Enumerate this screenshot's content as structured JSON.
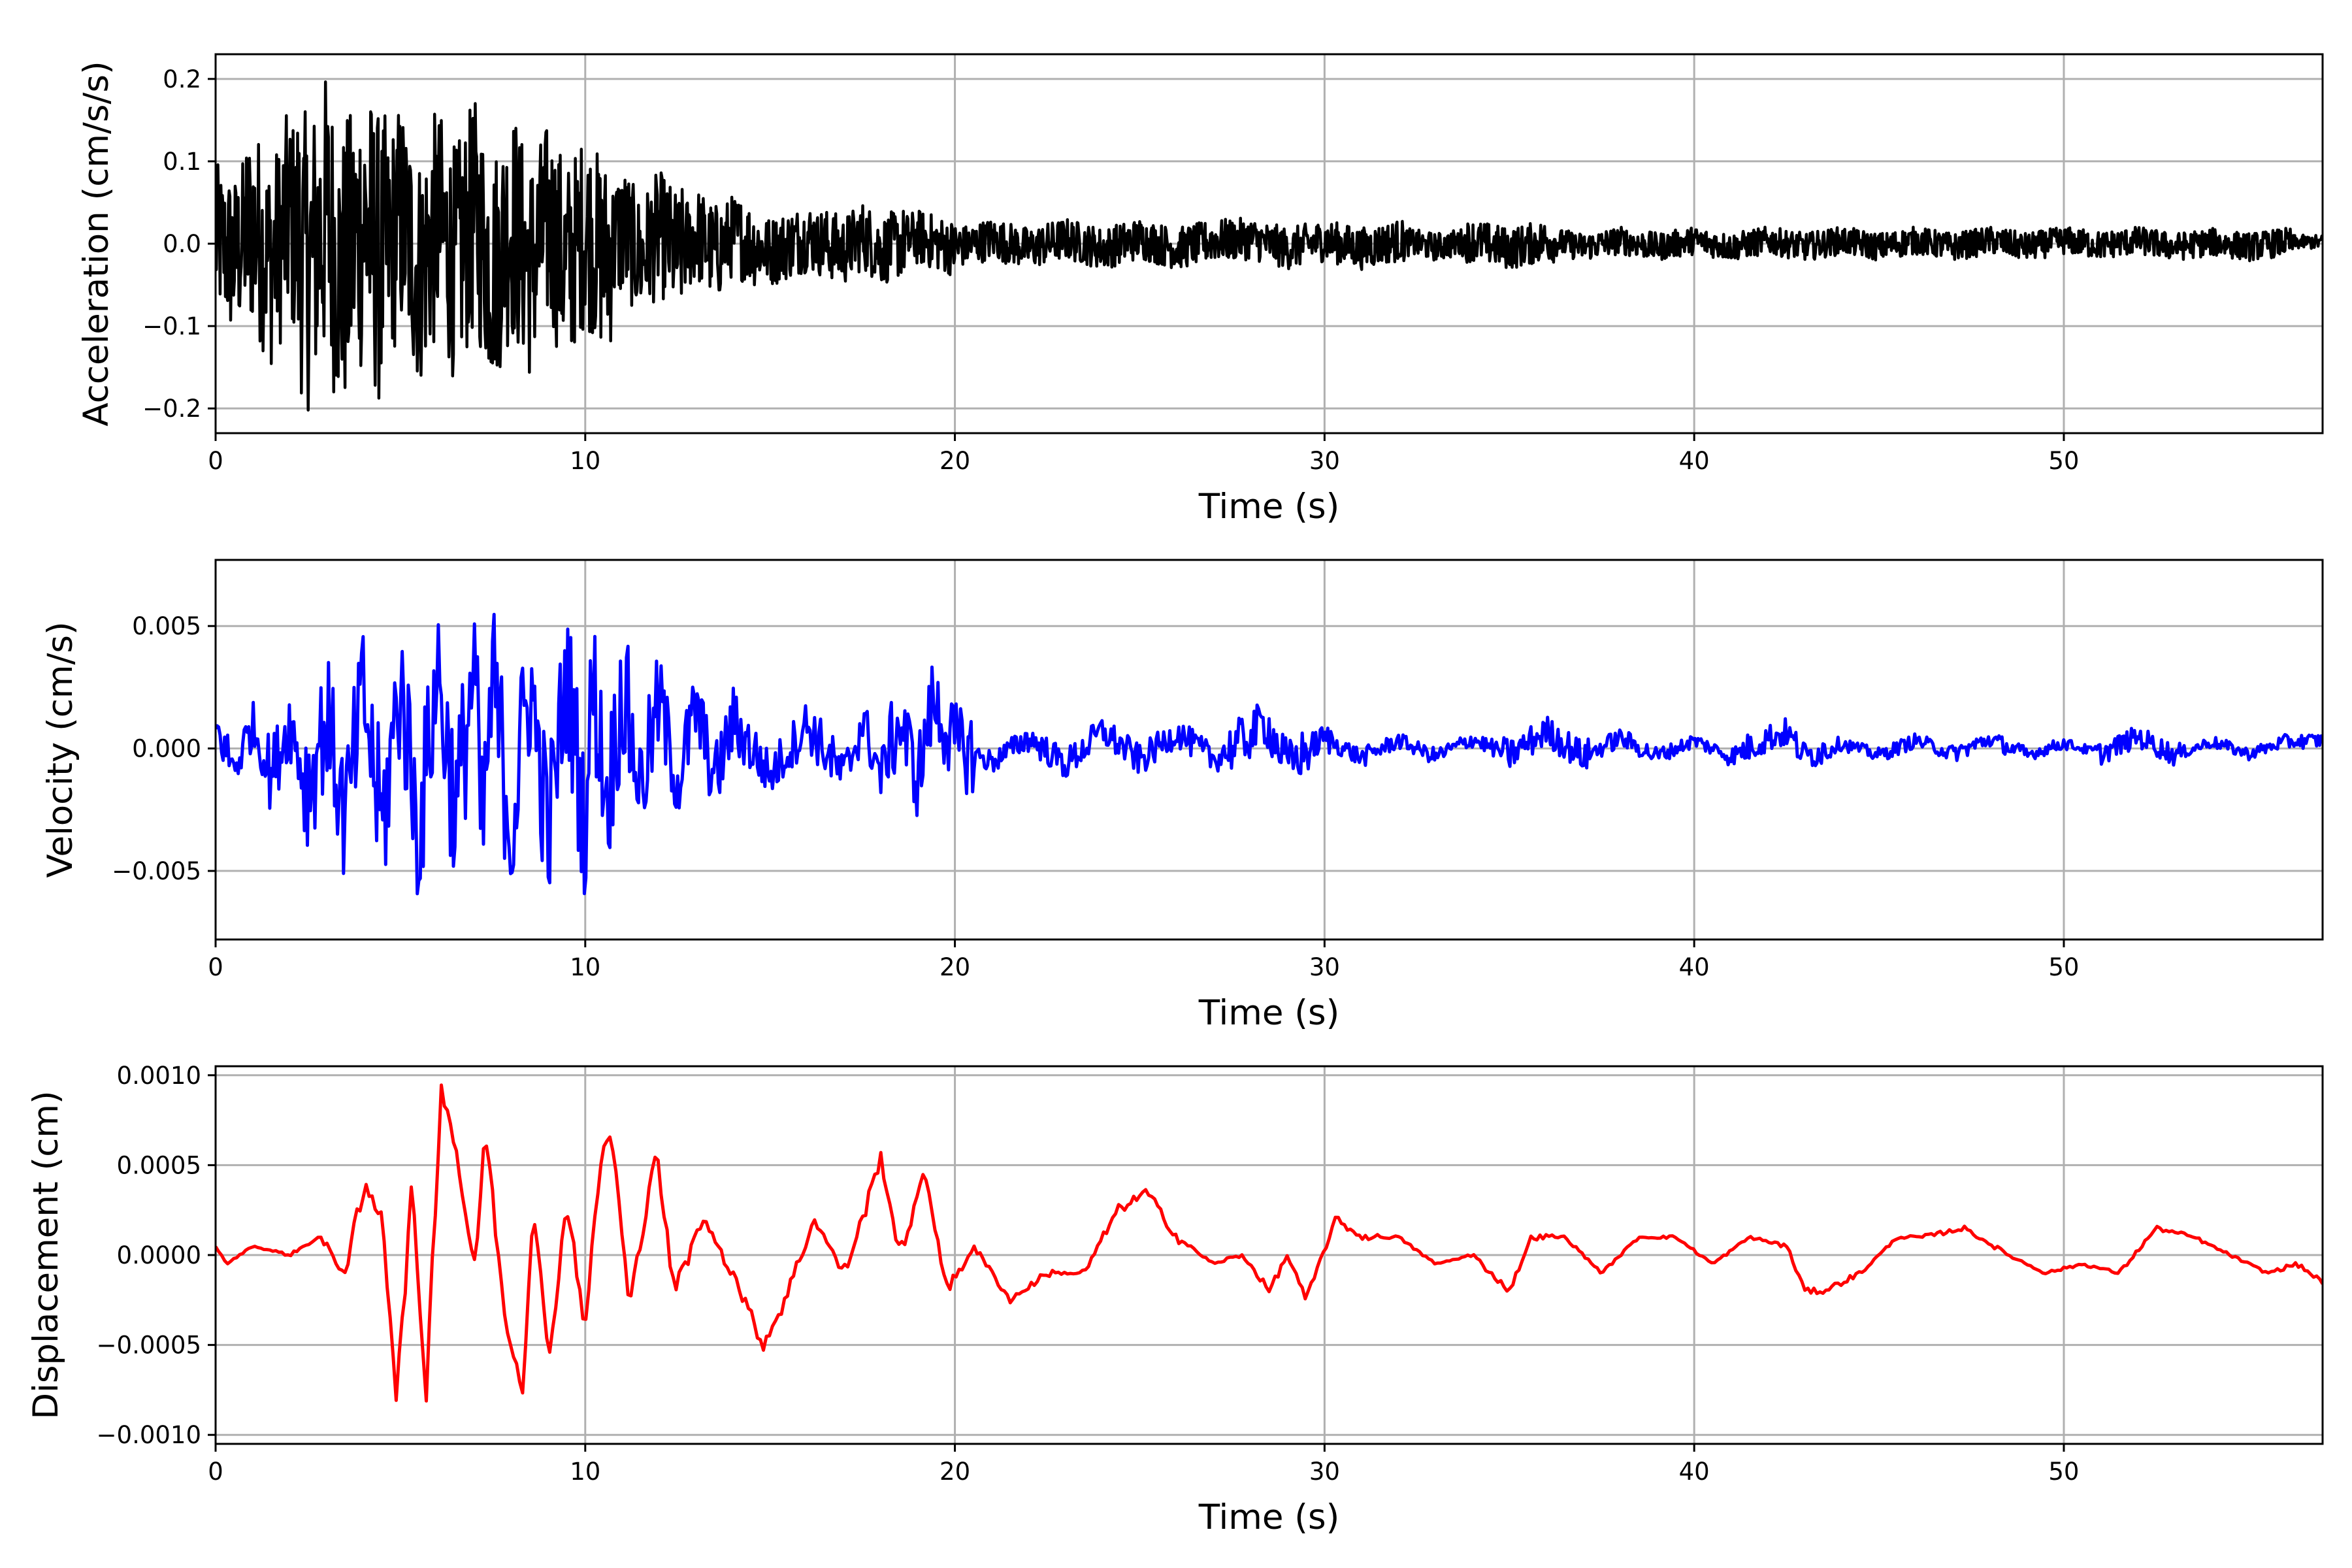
{
  "chart_data": [
    {
      "type": "line",
      "xlabel": "Time (s)",
      "ylabel": "Acceleration (cm/s/s)",
      "xlim": [
        0,
        57
      ],
      "ylim": [
        -0.23,
        0.23
      ],
      "xticks": [
        0,
        10,
        20,
        30,
        40,
        50
      ],
      "xtick_labels": [
        "0",
        "10",
        "20",
        "30",
        "40",
        "50"
      ],
      "yticks": [
        -0.2,
        -0.1,
        0.0,
        0.1,
        0.2
      ],
      "ytick_labels": [
        "−0.2",
        "−0.1",
        "0.0",
        "0.1",
        "0.2"
      ],
      "grid": true,
      "color": "#000000",
      "x": [
        0,
        0.5,
        1,
        1.5,
        2,
        2.5,
        3,
        3.4,
        4,
        4.5,
        5,
        5.5,
        6,
        6.5,
        7,
        7.5,
        8,
        8.5,
        9,
        9.5,
        10,
        10.5,
        11,
        11.5,
        12,
        12.5,
        13,
        13.5,
        14,
        15,
        16,
        17,
        17.5,
        18,
        19,
        20,
        21,
        22,
        23,
        24,
        25,
        26,
        27,
        28,
        29,
        30,
        31,
        32,
        33,
        34,
        35,
        36,
        37,
        38,
        39,
        40,
        41,
        42,
        43,
        44,
        45,
        46,
        47,
        48,
        49,
        50,
        51,
        52,
        53,
        54,
        55,
        56,
        57
      ],
      "y": [
        0.03,
        -0.09,
        0.11,
        -0.12,
        0.15,
        -0.13,
        0.16,
        -0.21,
        0.14,
        -0.15,
        0.16,
        -0.17,
        0.12,
        -0.13,
        0.17,
        -0.16,
        0.14,
        -0.15,
        0.12,
        -0.14,
        0.1,
        -0.09,
        0.08,
        -0.09,
        0.07,
        -0.07,
        0.06,
        -0.06,
        0.05,
        -0.05,
        0.04,
        -0.04,
        0.05,
        -0.04,
        0.04,
        -0.03,
        0.03,
        -0.03,
        0.03,
        -0.03,
        0.03,
        -0.03,
        0.02,
        0.03,
        -0.03,
        0.02,
        -0.03,
        0.02,
        -0.02,
        0.02,
        -0.03,
        0.02,
        -0.02,
        0.02,
        -0.02,
        0.02,
        -0.02,
        0.02,
        -0.02,
        0.02,
        -0.02,
        0.02,
        -0.02,
        0.02,
        -0.02,
        0.02,
        -0.01,
        0.02,
        -0.02,
        0.01,
        -0.02,
        0.01,
        0.01
      ]
    },
    {
      "type": "line",
      "xlabel": "Time (s)",
      "ylabel": "Velocity (cm/s)",
      "xlim": [
        0,
        57
      ],
      "ylim": [
        -0.0078,
        0.0077
      ],
      "xticks": [
        0,
        10,
        20,
        30,
        40,
        50
      ],
      "xtick_labels": [
        "0",
        "10",
        "20",
        "30",
        "40",
        "50"
      ],
      "yticks": [
        -0.005,
        0.0,
        0.005
      ],
      "ytick_labels": [
        "−0.005",
        "0.000",
        "0.005"
      ],
      "grid": true,
      "color": "#0000ff",
      "x": [
        0,
        0.5,
        1,
        1.5,
        2,
        2.5,
        3,
        3.5,
        4,
        4.5,
        5,
        5.5,
        6,
        6.5,
        7,
        7.2,
        7.5,
        8,
        8.5,
        9,
        9.5,
        10,
        10.2,
        10.6,
        11,
        11.5,
        12,
        12.5,
        13,
        13.5,
        14,
        15,
        16,
        17,
        17.5,
        18,
        18.5,
        19,
        19.4,
        20,
        21,
        22,
        23,
        24,
        25,
        26,
        27,
        28,
        28.4,
        29,
        30,
        31,
        32,
        33,
        34,
        35,
        36,
        37,
        38,
        39,
        40,
        41,
        42,
        42.5,
        43,
        44,
        45,
        46,
        47,
        48,
        49,
        50,
        51,
        52,
        53,
        54,
        55,
        56,
        57
      ],
      "y": [
        0.0015,
        -0.0015,
        0.0018,
        -0.002,
        0.002,
        -0.003,
        0.0025,
        -0.0055,
        0.004,
        -0.006,
        0.005,
        -0.0065,
        0.006,
        -0.005,
        0.0065,
        -0.007,
        0.005,
        -0.006,
        0.005,
        -0.0065,
        0.0055,
        -0.006,
        0.0052,
        -0.004,
        0.0045,
        -0.003,
        0.0035,
        -0.0025,
        0.003,
        -0.0025,
        0.002,
        -0.002,
        0.0018,
        -0.0022,
        0.002,
        -0.002,
        0.002,
        -0.0022,
        0.0035,
        0.0002,
        -0.001,
        0.0008,
        -0.0012,
        0.0013,
        -0.0009,
        0.0012,
        -0.0008,
        0.001,
        0.002,
        -0.0012,
        0.0008,
        -0.0007,
        0.0006,
        -0.0006,
        0.0007,
        -0.0005,
        0.0013,
        -0.0006,
        0.0008,
        -0.0006,
        0.0006,
        -0.0006,
        0.0008,
        0.0012,
        -0.0006,
        0.0004,
        -0.0005,
        0.0006,
        -0.0004,
        0.0007,
        -0.0005,
        0.0004,
        -0.0004,
        0.0009,
        -0.0005,
        0.0005,
        -0.0004,
        0.0005,
        0.0006
      ]
    },
    {
      "type": "line",
      "xlabel": "Time (s)",
      "ylabel": "Displacement (cm)",
      "xlim": [
        0,
        57
      ],
      "ylim": [
        -0.00105,
        0.00105
      ],
      "xticks": [
        0,
        10,
        20,
        30,
        40,
        50
      ],
      "xtick_labels": [
        "0",
        "10",
        "20",
        "30",
        "40",
        "50"
      ],
      "yticks": [
        -0.001,
        -0.0005,
        0.0,
        0.0005,
        0.001
      ],
      "ytick_labels": [
        "−0.0010",
        "−0.0005",
        "0.0000",
        "0.0005",
        "0.0010"
      ],
      "grid": true,
      "color": "#ff0000",
      "x": [
        0,
        0.3,
        1,
        2,
        2.8,
        3.5,
        4,
        4.5,
        4.9,
        5.3,
        5.7,
        6.1,
        6.5,
        7.0,
        7.3,
        7.8,
        8.3,
        8.6,
        9.0,
        9.5,
        10.0,
        10.4,
        10.7,
        11.2,
        11.9,
        12.4,
        13.2,
        14.0,
        14.8,
        15.3,
        16.2,
        17.0,
        17.5,
        18.0,
        18.5,
        19.2,
        19.8,
        20.5,
        21.5,
        22.5,
        23.5,
        24.4,
        25.2,
        26.0,
        27.0,
        27.8,
        28.5,
        29.0,
        29.5,
        30.3,
        31.0,
        32.0,
        33.0,
        34.0,
        35.0,
        35.6,
        36.5,
        37.5,
        38.5,
        39.5,
        40.5,
        41.5,
        42.5,
        43.0,
        43.5,
        44.5,
        45.5,
        46.2,
        47.3,
        48.5,
        49.5,
        50.5,
        51.5,
        52.5,
        53.5,
        54.5,
        55.5,
        56.3,
        57.0
      ],
      "y": [
        5e-05,
        -5e-05,
        5e-05,
        0.0,
        0.0001,
        -0.0001,
        0.00035,
        0.00025,
        -0.0008,
        0.00035,
        -0.00075,
        0.00095,
        0.0006,
        -0.0001,
        0.0007,
        -0.0003,
        -0.00075,
        0.0003,
        -0.0006,
        0.0003,
        -0.0004,
        0.0005,
        0.0007,
        -0.0003,
        0.0006,
        -0.0002,
        0.0002,
        -0.0001,
        -0.0005,
        -0.0003,
        0.0002,
        -0.0001,
        0.0002,
        0.00055,
        0.0,
        0.00045,
        -0.0002,
        5e-05,
        -0.00025,
        -0.0001,
        -0.0001,
        0.00025,
        0.00035,
        0.0001,
        -5e-05,
        0.0,
        -0.0002,
        0.0,
        -0.00025,
        0.0002,
        0.0001,
        0.0001,
        -5e-05,
        0.0,
        -0.0002,
        0.0001,
        0.0001,
        -0.0001,
        0.0001,
        0.0001,
        -5e-05,
        0.0001,
        5e-05,
        -0.0002,
        -0.0002,
        -0.0001,
        0.0001,
        0.0001,
        0.00015,
        0.0,
        -0.0001,
        -5e-05,
        -0.0001,
        0.00015,
        0.0001,
        0.0,
        -0.0001,
        -5e-05,
        -0.00015
      ]
    }
  ]
}
